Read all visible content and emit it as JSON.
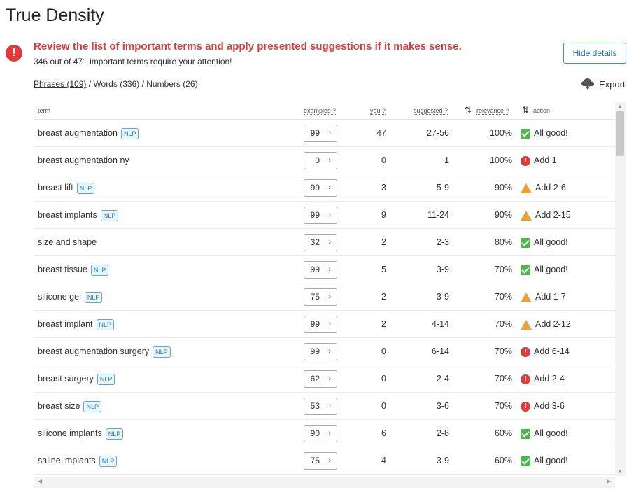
{
  "title": "True Density",
  "alert": {
    "icon": "alert-circle-icon",
    "title": "Review the list of important terms and apply presented suggestions if it makes sense.",
    "subtitle": "346 out of 471 important terms require your attention!"
  },
  "hide_details_label": "Hide details",
  "tabs": {
    "phrases": "Phrases (109)",
    "words": "Words (336)",
    "numbers": "Numbers (26)",
    "sep": "/"
  },
  "export_label": "Export",
  "columns": {
    "term": "term",
    "examples": "examples ?",
    "you": "you ?",
    "suggested": "suggested ?",
    "relevance": "relevance ?",
    "action": "action"
  },
  "nlp_label": "NLP",
  "rows": [
    {
      "term": "breast augmentation",
      "nlp": true,
      "examples": "99",
      "you": "47",
      "suggested": "27-56",
      "relevance": "100%",
      "status": "good",
      "action": "All good!"
    },
    {
      "term": "breast augmentation ny",
      "nlp": false,
      "examples": "0",
      "you": "0",
      "suggested": "1",
      "relevance": "100%",
      "status": "bad",
      "action": "Add 1"
    },
    {
      "term": "breast lift",
      "nlp": true,
      "examples": "99",
      "you": "3",
      "suggested": "5-9",
      "relevance": "90%",
      "status": "warn",
      "action": "Add 2-6"
    },
    {
      "term": "breast implants",
      "nlp": true,
      "examples": "99",
      "you": "9",
      "suggested": "11-24",
      "relevance": "90%",
      "status": "warn",
      "action": "Add 2-15"
    },
    {
      "term": "size and shape",
      "nlp": false,
      "examples": "32",
      "you": "2",
      "suggested": "2-3",
      "relevance": "80%",
      "status": "good",
      "action": "All good!"
    },
    {
      "term": "breast tissue",
      "nlp": true,
      "examples": "99",
      "you": "5",
      "suggested": "3-9",
      "relevance": "70%",
      "status": "good",
      "action": "All good!"
    },
    {
      "term": "silicone gel",
      "nlp": true,
      "examples": "75",
      "you": "2",
      "suggested": "3-9",
      "relevance": "70%",
      "status": "warn",
      "action": "Add 1-7"
    },
    {
      "term": "breast implant",
      "nlp": true,
      "examples": "99",
      "you": "2",
      "suggested": "4-14",
      "relevance": "70%",
      "status": "warn",
      "action": "Add 2-12"
    },
    {
      "term": "breast augmentation surgery",
      "nlp": true,
      "examples": "99",
      "you": "0",
      "suggested": "6-14",
      "relevance": "70%",
      "status": "bad",
      "action": "Add 6-14"
    },
    {
      "term": "breast surgery",
      "nlp": true,
      "examples": "62",
      "you": "0",
      "suggested": "2-4",
      "relevance": "70%",
      "status": "bad",
      "action": "Add 2-4"
    },
    {
      "term": "breast size",
      "nlp": true,
      "examples": "53",
      "you": "0",
      "suggested": "3-6",
      "relevance": "70%",
      "status": "bad",
      "action": "Add 3-6"
    },
    {
      "term": "silicone implants",
      "nlp": true,
      "examples": "90",
      "you": "6",
      "suggested": "2-8",
      "relevance": "60%",
      "status": "good",
      "action": "All good!"
    },
    {
      "term": "saline implants",
      "nlp": true,
      "examples": "75",
      "you": "4",
      "suggested": "3-9",
      "relevance": "60%",
      "status": "good",
      "action": "All good!"
    }
  ],
  "colors": {
    "accent": "#3a8dde",
    "error": "#e03b3b",
    "success": "#4cb84c",
    "warning": "#f0a030"
  }
}
